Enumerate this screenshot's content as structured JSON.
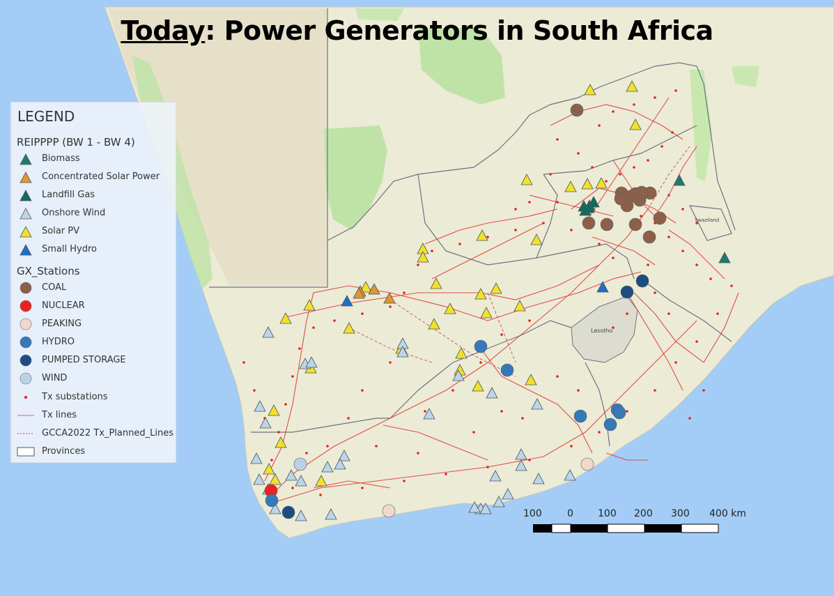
{
  "title": {
    "prefix": "Today",
    "rest": ": Power Generators in South Africa"
  },
  "legend": {
    "title": "LEGEND",
    "section_reipppp": "REIPPPP (BW 1 - BW 4)",
    "reipppp": [
      {
        "label": "Biomass",
        "color": "#1d7c6b",
        "shape": "triangle"
      },
      {
        "label": "Concentrated Solar Power",
        "color": "#e0962e",
        "shape": "triangle"
      },
      {
        "label": "Landfill Gas",
        "color": "#136b5a",
        "shape": "triangle"
      },
      {
        "label": "Onshore Wind",
        "color": "#bcd6e8",
        "shape": "triangle"
      },
      {
        "label": "Solar PV",
        "color": "#f2e12b",
        "shape": "triangle"
      },
      {
        "label": "Small Hydro",
        "color": "#1f6fc5",
        "shape": "triangle"
      }
    ],
    "section_gx": "GX_Stations",
    "gx": [
      {
        "label": "COAL",
        "color": "#8c6048",
        "shape": "circle"
      },
      {
        "label": "NUCLEAR",
        "color": "#f02020",
        "shape": "circle"
      },
      {
        "label": "PEAKING",
        "color": "#f0d8cc",
        "shape": "circle"
      },
      {
        "label": "HYDRO",
        "color": "#3579b8",
        "shape": "circle"
      },
      {
        "label": "PUMPED STORAGE",
        "color": "#1b4e80",
        "shape": "circle"
      },
      {
        "label": "WIND",
        "color": "#b8d4e4",
        "shape": "circle"
      }
    ],
    "other": [
      {
        "label": "Tx substations",
        "shape": "dot",
        "color": "#e02020"
      },
      {
        "label": "Tx lines",
        "shape": "line",
        "color": "#e06060"
      },
      {
        "label": "GCCA2022 Tx_Planned_Lines",
        "shape": "dashline",
        "color": "#d03030"
      },
      {
        "label": "Provinces",
        "shape": "box",
        "color": "#555555"
      }
    ]
  },
  "scalebar": {
    "labels": [
      "100",
      "0",
      "100",
      "200",
      "300",
      "400 km"
    ]
  },
  "map_labels": {
    "lesotho": "Lesotho",
    "swaziland": "Swaziland"
  },
  "colors": {
    "ocean": "#a3cdf7",
    "land": "#ecebd6",
    "park": "#bfe3a6",
    "lines": "#e23b3b",
    "province": "#6b7280"
  }
}
